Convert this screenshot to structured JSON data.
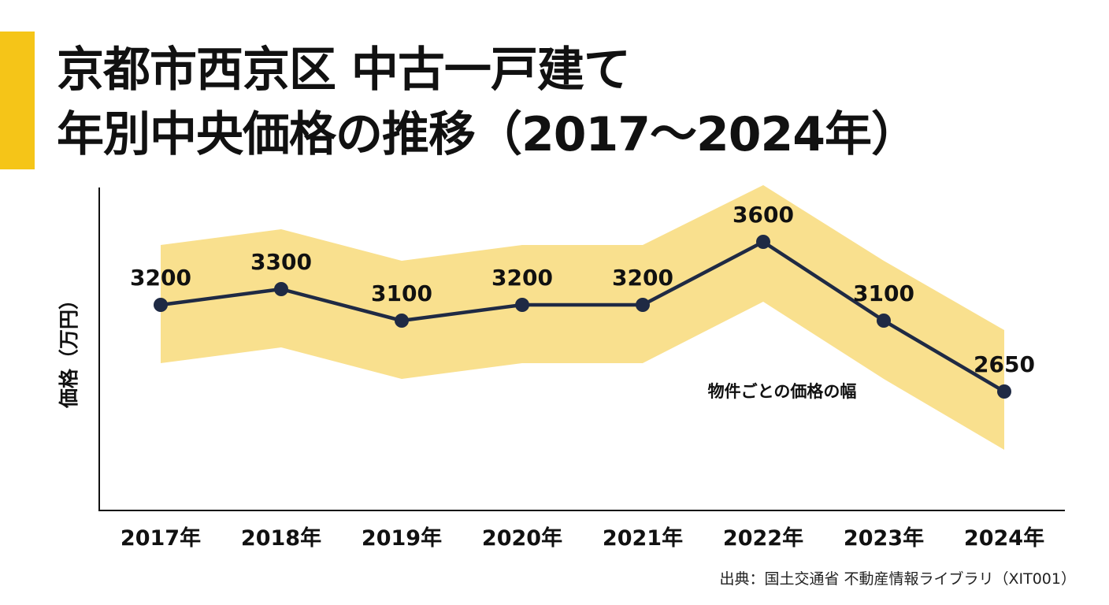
{
  "title": {
    "line1": "京都市西京区 中古一戸建て",
    "line2": "年別中央価格の推移（2017〜2024年）"
  },
  "colors": {
    "accent": "#f5c518",
    "band": "#f9e08e",
    "line": "#1f2a44",
    "text": "#111111"
  },
  "chart_data": {
    "type": "line",
    "categories": [
      "2017年",
      "2018年",
      "2019年",
      "2020年",
      "2021年",
      "2022年",
      "2023年",
      "2024年"
    ],
    "series": [
      {
        "values": [
          3200,
          3300,
          3100,
          3200,
          3200,
          3600,
          3100,
          2650
        ]
      }
    ],
    "band": {
      "label": "物件ごとの価格の幅",
      "upper": [
        3580,
        3680,
        3480,
        3580,
        3580,
        3960,
        3480,
        3040
      ],
      "lower": [
        2830,
        2930,
        2730,
        2830,
        2830,
        3220,
        2730,
        2280
      ]
    },
    "data_labels": [
      "3200",
      "3300",
      "3100",
      "3200",
      "3200",
      "3600",
      "3100",
      "2650"
    ],
    "ylabel": "価格（万円）",
    "xlabel": "",
    "y_ticks_shown": false,
    "grid": false,
    "legend": "none"
  },
  "source": "出典：国土交通省 不動産情報ライブラリ（XIT001）"
}
